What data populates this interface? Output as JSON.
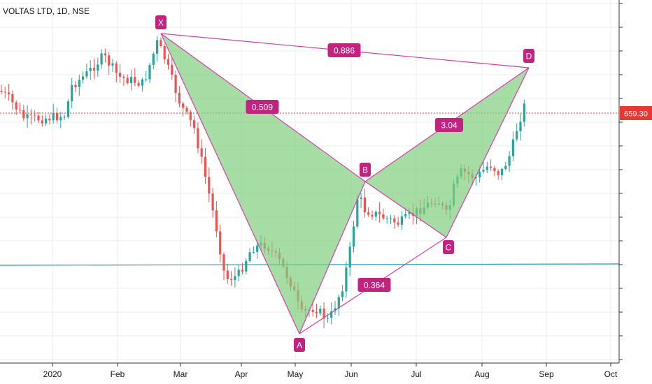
{
  "header": {
    "symbol_label": "VOLTAS LTD, 1D, NSE"
  },
  "price_tag": {
    "value": "659.30"
  },
  "colors": {
    "up": "#26a69a",
    "down": "#ef5350",
    "pattern_fill": "#7fcf7f",
    "pattern_line": "#d63ea8",
    "label_bg": "#c2237f",
    "price_line": "#e53935",
    "horizontal_line": "#26a0b5",
    "grid": "#eeeeee"
  },
  "chart_data": {
    "type": "candlestick",
    "x_ticks": [
      "2020",
      "Feb",
      "Mar",
      "Apr",
      "May",
      "Jun",
      "Jul",
      "Aug",
      "Sep",
      "Oct"
    ],
    "current_price": 659.3,
    "pattern": {
      "type": "harmonic-xabcd",
      "points": [
        {
          "label": "X",
          "date": "2020-02-20"
        },
        {
          "label": "A",
          "date": "2020-05-01"
        },
        {
          "label": "B",
          "date": "2020-06-05"
        },
        {
          "label": "C",
          "date": "2020-07-15"
        },
        {
          "label": "D",
          "date": "2020-08-21"
        }
      ],
      "ratios": [
        {
          "leg": "XB",
          "value": "0.509"
        },
        {
          "leg": "AC",
          "value": "0.364"
        },
        {
          "leg": "BD",
          "value": "3.04"
        },
        {
          "leg": "XD",
          "value": "0.886"
        }
      ]
    }
  }
}
